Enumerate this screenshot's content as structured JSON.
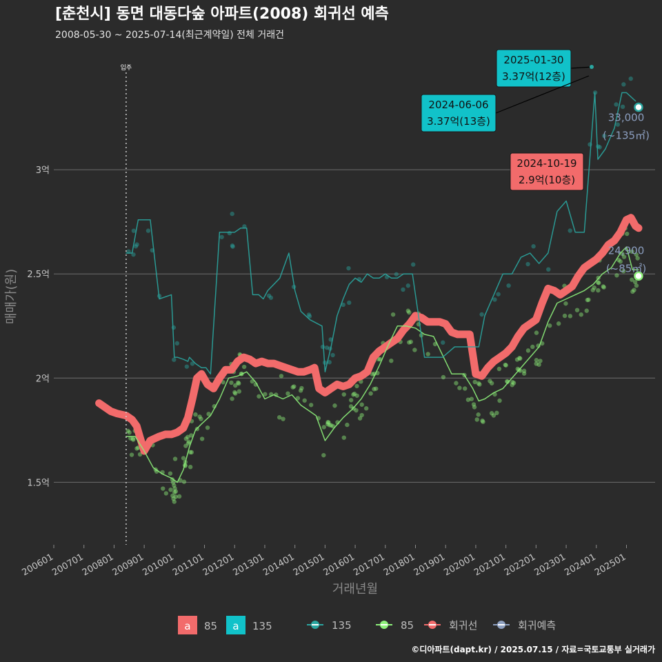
{
  "title": "[춘천시] 동면 대동다숲 아파트(2008) 회귀선 예측",
  "subtitle": "2008-05-30 ~ 2025-07-14(최근계약일) 전체 거래건",
  "credit": "©디아파트(dapt.kr) / 2025.07.15 / 자료=국토교통부 실거래가",
  "colors": {
    "background": "#2b2b2b",
    "grid": "#6e6e6e",
    "regression": "#f26b6b",
    "series_85": "#8df07a",
    "series_135": "#2aa6a0",
    "annot_teal": "#11c2c9",
    "annot_red": "#f26b6b",
    "forecast": "#8c9fc0"
  },
  "chart_data": {
    "type": "line",
    "title": "[춘천시] 동면 대동다숲 아파트(2008) 회귀선 예측",
    "xlabel": "거래년월",
    "ylabel": "매매가(원)",
    "ylim": [
      1.2,
      3.55
    ],
    "y_ticks": [
      {
        "value": 1.5,
        "label": "1.5억"
      },
      {
        "value": 2.0,
        "label": "2억"
      },
      {
        "value": 2.5,
        "label": "2.5억"
      },
      {
        "value": 3.0,
        "label": "3억"
      }
    ],
    "xlim": [
      2006.0,
      2025.95
    ],
    "x_ticks": [
      {
        "value": 2006,
        "label": "200601"
      },
      {
        "value": 2007,
        "label": "200701"
      },
      {
        "value": 2008,
        "label": "200801"
      },
      {
        "value": 2009,
        "label": "200901"
      },
      {
        "value": 2010,
        "label": "201001"
      },
      {
        "value": 2011,
        "label": "201101"
      },
      {
        "value": 2012,
        "label": "201201"
      },
      {
        "value": 2013,
        "label": "201301"
      },
      {
        "value": 2014,
        "label": "201401"
      },
      {
        "value": 2015,
        "label": "201501"
      },
      {
        "value": 2016,
        "label": "201601"
      },
      {
        "value": 2017,
        "label": "201701"
      },
      {
        "value": 2018,
        "label": "201801"
      },
      {
        "value": 2019,
        "label": "201901"
      },
      {
        "value": 2020,
        "label": "202001"
      },
      {
        "value": 2021,
        "label": "202101"
      },
      {
        "value": 2022,
        "label": "202201"
      },
      {
        "value": 2023,
        "label": "202301"
      },
      {
        "value": 2024,
        "label": "202401"
      },
      {
        "value": 2025,
        "label": "202501"
      }
    ],
    "event_line": {
      "x": 2008.4,
      "label": "입주"
    },
    "series": [
      {
        "name": "회귀선",
        "x": [
          2007.5,
          2007.7,
          2007.9,
          2008.1,
          2008.4,
          2008.6,
          2008.75,
          2008.85,
          2009.0,
          2009.2,
          2009.5,
          2009.7,
          2009.9,
          2010.1,
          2010.3,
          2010.45,
          2010.6,
          2010.75,
          2010.9,
          2011.1,
          2011.3,
          2011.5,
          2011.7,
          2011.9,
          2012.1,
          2012.3,
          2012.5,
          2012.7,
          2012.9,
          2013.1,
          2013.3,
          2013.5,
          2013.7,
          2013.9,
          2014.1,
          2014.3,
          2014.5,
          2014.65,
          2014.8,
          2015.0,
          2015.2,
          2015.4,
          2015.6,
          2015.8,
          2016.0,
          2016.2,
          2016.4,
          2016.6,
          2016.8,
          2017.0,
          2017.2,
          2017.4,
          2017.6,
          2017.8,
          2018.0,
          2018.2,
          2018.4,
          2018.6,
          2018.8,
          2019.0,
          2019.2,
          2019.4,
          2019.6,
          2019.8,
          2020.0,
          2020.2,
          2020.4,
          2020.6,
          2020.8,
          2021.0,
          2021.2,
          2021.4,
          2021.6,
          2021.8,
          2022.0,
          2022.2,
          2022.4,
          2022.6,
          2022.8,
          2023.0,
          2023.2,
          2023.4,
          2023.6,
          2023.8,
          2024.0,
          2024.2,
          2024.4,
          2024.6,
          2024.8,
          2025.0,
          2025.15,
          2025.3,
          2025.4
        ],
        "y": [
          1.88,
          1.86,
          1.84,
          1.83,
          1.82,
          1.8,
          1.77,
          1.72,
          1.65,
          1.7,
          1.72,
          1.73,
          1.73,
          1.74,
          1.76,
          1.81,
          1.9,
          2.0,
          2.02,
          1.97,
          1.95,
          2.0,
          2.04,
          2.04,
          2.08,
          2.1,
          2.09,
          2.07,
          2.08,
          2.07,
          2.07,
          2.06,
          2.05,
          2.04,
          2.03,
          2.03,
          2.04,
          2.05,
          1.95,
          1.93,
          1.95,
          1.97,
          1.96,
          1.97,
          2.0,
          2.01,
          2.03,
          2.1,
          2.13,
          2.15,
          2.17,
          2.19,
          2.23,
          2.26,
          2.3,
          2.29,
          2.27,
          2.27,
          2.27,
          2.26,
          2.22,
          2.21,
          2.21,
          2.21,
          2.02,
          2.01,
          2.05,
          2.08,
          2.1,
          2.12,
          2.15,
          2.2,
          2.24,
          2.26,
          2.28,
          2.36,
          2.43,
          2.42,
          2.4,
          2.42,
          2.44,
          2.49,
          2.53,
          2.55,
          2.57,
          2.6,
          2.64,
          2.66,
          2.7,
          2.76,
          2.77,
          2.73,
          2.72
        ],
        "color": "#f26b6b"
      },
      {
        "name": "85",
        "x": [
          2008.4,
          2008.7,
          2009.0,
          2009.3,
          2009.6,
          2009.9,
          2010.1,
          2010.3,
          2010.5,
          2010.7,
          2010.9,
          2011.2,
          2011.5,
          2011.8,
          2012.1,
          2012.4,
          2012.7,
          2013.0,
          2013.3,
          2013.6,
          2013.9,
          2014.2,
          2014.5,
          2014.7,
          2015.0,
          2015.3,
          2015.6,
          2015.9,
          2016.2,
          2016.5,
          2016.8,
          2017.1,
          2017.4,
          2017.7,
          2018.0,
          2018.3,
          2018.6,
          2019.2,
          2019.6,
          2019.9,
          2020.1,
          2020.3,
          2020.6,
          2020.9,
          2021.2,
          2021.5,
          2021.8,
          2022.1,
          2022.4,
          2022.7,
          2023.0,
          2023.3,
          2023.6,
          2023.9,
          2024.2,
          2024.5,
          2024.8,
          2025.0,
          2025.2,
          2025.4
        ],
        "y": [
          1.72,
          1.72,
          1.65,
          1.57,
          1.54,
          1.52,
          1.5,
          1.56,
          1.67,
          1.75,
          1.78,
          1.82,
          1.9,
          2.0,
          2.01,
          2.03,
          1.98,
          1.9,
          1.92,
          1.9,
          1.92,
          1.87,
          1.84,
          1.82,
          1.7,
          1.76,
          1.81,
          1.85,
          1.9,
          1.97,
          2.06,
          2.16,
          2.25,
          2.25,
          2.24,
          2.21,
          2.2,
          2.02,
          2.02,
          1.95,
          1.89,
          1.9,
          1.93,
          1.95,
          2.0,
          2.05,
          2.1,
          2.15,
          2.27,
          2.36,
          2.38,
          2.4,
          2.42,
          2.45,
          2.5,
          2.53,
          2.6,
          2.63,
          2.52,
          2.52
        ],
        "color": "#8df07a"
      },
      {
        "name": "135",
        "x": [
          2008.4,
          2008.6,
          2008.8,
          2009.0,
          2009.2,
          2009.5,
          2009.9,
          2010.0,
          2010.1,
          2010.3,
          2010.45,
          2010.5,
          2010.7,
          2010.9,
          2011.05,
          2011.2,
          2011.5,
          2011.8,
          2012.0,
          2012.2,
          2012.4,
          2012.6,
          2012.8,
          2012.95,
          2013.1,
          2013.3,
          2013.5,
          2013.8,
          2014.0,
          2014.2,
          2014.5,
          2014.9,
          2015.0,
          2015.2,
          2015.4,
          2015.6,
          2015.8,
          2016.0,
          2016.2,
          2016.4,
          2016.6,
          2016.8,
          2017.0,
          2017.2,
          2017.4,
          2017.6,
          2017.9,
          2018.3,
          2018.9,
          2019.3,
          2020.1,
          2020.3,
          2020.6,
          2020.9,
          2021.2,
          2021.5,
          2021.8,
          2022.1,
          2022.4,
          2022.7,
          2023.0,
          2023.3,
          2023.6,
          2023.95,
          2024.05,
          2024.3,
          2024.6,
          2024.85,
          2025.0,
          2025.3
        ],
        "y": [
          2.6,
          2.6,
          2.76,
          2.76,
          2.76,
          2.38,
          2.4,
          2.1,
          2.1,
          2.09,
          2.08,
          2.1,
          2.07,
          2.05,
          2.05,
          2.02,
          2.7,
          2.7,
          2.7,
          2.72,
          2.72,
          2.4,
          2.4,
          2.38,
          2.42,
          2.45,
          2.48,
          2.6,
          2.42,
          2.32,
          2.28,
          2.25,
          2.03,
          2.15,
          2.3,
          2.38,
          2.45,
          2.48,
          2.46,
          2.5,
          2.48,
          2.48,
          2.5,
          2.48,
          2.48,
          2.5,
          2.5,
          2.1,
          2.1,
          2.15,
          2.15,
          2.3,
          2.4,
          2.5,
          2.5,
          2.58,
          2.6,
          2.55,
          2.6,
          2.8,
          2.85,
          2.7,
          2.7,
          3.37,
          3.05,
          3.1,
          3.2,
          3.37,
          3.37,
          3.33
        ],
        "color": "#2aa6a0"
      }
    ],
    "annotations": [
      {
        "date": "2025-01-30",
        "price": "3.37억(12층)",
        "x": 2024.3,
        "y": 3.37,
        "style": "teal"
      },
      {
        "date": "2024-06-06",
        "price": "3.37억(13층)",
        "x": 2023.95,
        "y": 3.37,
        "style": "teal"
      },
      {
        "date": "2024-10-19",
        "price": "2.9억(10층)",
        "x": 2024.8,
        "y": 2.9,
        "style": "red"
      }
    ],
    "end_labels": [
      {
        "value": "33,000",
        "area": "(~135㎡)",
        "x": 2025.4,
        "y": 3.3
      },
      {
        "value": "24,900",
        "area": "(~85㎡)",
        "x": 2025.4,
        "y": 2.49
      }
    ],
    "legend": {
      "fill_items": [
        {
          "glyph": "a",
          "label": "85",
          "color": "#f26b6b"
        },
        {
          "glyph": "a",
          "label": "135",
          "color": "#11c2c9"
        }
      ],
      "line_items": [
        {
          "label": "135",
          "color": "#2aa6a0"
        },
        {
          "label": "85",
          "color": "#8df07a"
        },
        {
          "label": "회귀선",
          "color": "#f26b6b"
        },
        {
          "label": "회귀예측",
          "color": "#8c9fc0"
        }
      ],
      "position": "bottom"
    }
  }
}
